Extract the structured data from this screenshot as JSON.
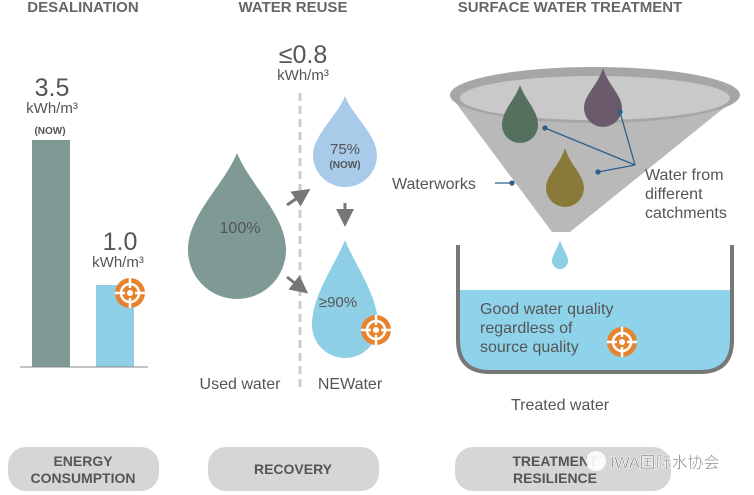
{
  "sections": {
    "desalination": {
      "title": "DESALINATION",
      "now_value": "3.5",
      "now_unit": "kWh/m³",
      "now_tag": "(NOW)",
      "target_value": "1.0",
      "target_unit": "kWh/m³",
      "pill_line1": "ENERGY",
      "pill_line2": "CONSUMPTION"
    },
    "water_reuse": {
      "title": "WATER REUSE",
      "energy_value": "≤0.8",
      "energy_unit": "kWh/m³",
      "used_pct": "100%",
      "now_pct": "75%",
      "now_tag": "(NOW)",
      "target_pct": "≥90%",
      "used_label": "Used water",
      "newater_label": "NEWater",
      "pill": "RECOVERY"
    },
    "surface": {
      "title": "SURFACE WATER TREATMENT",
      "waterworks_label": "Waterworks",
      "catchments_line1": "Water from",
      "catchments_line2": "different",
      "catchments_line3": "catchments",
      "quality_line1": "Good water quality",
      "quality_line2": "regardless of",
      "quality_line3": "source quality",
      "treated_label": "Treated water",
      "pill_line1": "TREATMENT",
      "pill_line2": "RESILIENCE"
    }
  },
  "watermark": "IWA国际水协会",
  "colors": {
    "teal_grey": "#7f9a95",
    "light_blue": "#8fcfe6",
    "pale_blue": "#a8cbea",
    "target_orange": "#e8832d",
    "pill_grey": "#d6d6d6"
  }
}
